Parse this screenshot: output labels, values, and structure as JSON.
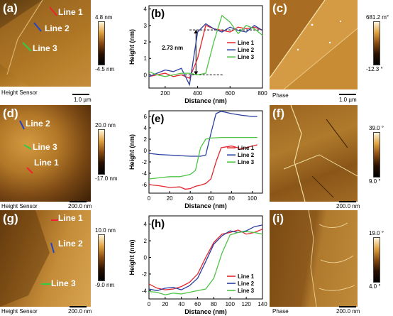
{
  "panels": {
    "a": {
      "letter": "(a)",
      "lines": [
        "Line 1",
        "Line 2",
        "Line 3"
      ],
      "sensor": "Height Sensor",
      "scale": "1.0 µm",
      "cb_top": "4.8 nm",
      "cb_bottom": "-4.5 nm"
    },
    "c": {
      "letter": "(c)",
      "sensor": "Phase",
      "scale": "1.0 µm",
      "cb_top": "681.2 m°",
      "cb_bottom": "-12.3 °"
    },
    "d": {
      "letter": "(d)",
      "lines": [
        "Line 2",
        "Line 3",
        "Line 1"
      ],
      "sensor": "Height Sensor",
      "scale": "200.0 nm",
      "cb_top": "20.0 nm",
      "cb_bottom": "-17.0 nm"
    },
    "f": {
      "letter": "(f)",
      "sensor": "Phase",
      "scale": "200.0 nm",
      "cb_top": "39.0 °",
      "cb_bottom": "9.0 °"
    },
    "g": {
      "letter": "(g)",
      "lines": [
        "Line 1",
        "Line 2",
        "Line 3"
      ],
      "sensor": "Height Sensor",
      "scale": "200.0 nm",
      "cb_top": "10.0 nm",
      "cb_bottom": "-9.0 nm"
    },
    "i": {
      "letter": "(i)",
      "sensor": "Phase",
      "scale": "200.0 nm",
      "cb_top": "19.0 °",
      "cb_bottom": "4.0 °"
    }
  },
  "chart_data": [
    {
      "panel": "(b)",
      "type": "line",
      "xlabel": "Distance (nm)",
      "ylabel": "Height (nm)",
      "xlim": [
        100,
        800
      ],
      "ylim": [
        -0.8,
        4.2
      ],
      "xticks": [
        200,
        400,
        600,
        800
      ],
      "yticks": [
        0,
        1,
        2,
        3,
        4
      ],
      "annotation": "2.73 nm",
      "legend": "center-right",
      "series": [
        {
          "name": "Line 1",
          "color": "#e3262e",
          "x": [
            100,
            150,
            200,
            250,
            300,
            350,
            400,
            450,
            500,
            550,
            600,
            650,
            700,
            750,
            800
          ],
          "y": [
            -0.1,
            0.0,
            0.1,
            -0.1,
            0.0,
            -0.2,
            1.0,
            3.0,
            2.8,
            2.7,
            2.6,
            2.9,
            2.8,
            2.9,
            2.7
          ]
        },
        {
          "name": "Line 2",
          "color": "#2b3fa0",
          "x": [
            100,
            150,
            200,
            250,
            300,
            350,
            400,
            450,
            500,
            550,
            600,
            650,
            700,
            750,
            800
          ],
          "y": [
            -0.1,
            0.1,
            0.3,
            0.2,
            0.4,
            -0.6,
            2.6,
            3.1,
            2.8,
            2.6,
            2.9,
            2.7,
            2.6,
            3.0,
            2.7
          ]
        },
        {
          "name": "Line 3",
          "color": "#4fc447",
          "x": [
            100,
            150,
            200,
            250,
            300,
            350,
            400,
            450,
            500,
            550,
            600,
            650,
            700,
            750,
            800
          ],
          "y": [
            0.2,
            0.0,
            -0.1,
            0.0,
            0.1,
            0.1,
            0.0,
            0.1,
            2.0,
            3.6,
            3.2,
            2.5,
            3.0,
            2.8,
            2.4
          ]
        }
      ]
    },
    {
      "panel": "(e)",
      "type": "line",
      "xlabel": "Distance (nm)",
      "ylabel": "Height (nm)",
      "xlim": [
        0,
        110
      ],
      "ylim": [
        -7.5,
        7
      ],
      "xticks": [
        0,
        20,
        40,
        60,
        80,
        100
      ],
      "yticks": [
        -6,
        -4,
        -2,
        0,
        2,
        4,
        6
      ],
      "legend": "center-right",
      "series": [
        {
          "name": "Line 1",
          "color": "#e3262e",
          "x": [
            0,
            10,
            20,
            30,
            35,
            40,
            45,
            50,
            55,
            60,
            65,
            70,
            80,
            90,
            100,
            105
          ],
          "y": [
            -6,
            -6.2,
            -6.5,
            -6.4,
            -6.8,
            -6.7,
            -6.3,
            -6.1,
            -5.8,
            -5.0,
            -2.0,
            0.5,
            0.8,
            0.3,
            0.8,
            1.0
          ]
        },
        {
          "name": "Line 2",
          "color": "#2b3fa0",
          "x": [
            0,
            10,
            20,
            30,
            40,
            50,
            55,
            60,
            65,
            70,
            80,
            90,
            100,
            105
          ],
          "y": [
            -0.5,
            -0.7,
            -0.8,
            -0.9,
            -1.0,
            -1.0,
            -0.8,
            3.0,
            6.5,
            6.9,
            6.5,
            6.2,
            6.0,
            6.0
          ]
        },
        {
          "name": "Line 3",
          "color": "#4fc447",
          "x": [
            0,
            10,
            20,
            30,
            40,
            45,
            50,
            55,
            60,
            70,
            80,
            90,
            100,
            105
          ],
          "y": [
            -5.0,
            -4.8,
            -4.6,
            -4.6,
            -4.2,
            -3.5,
            0.5,
            2.0,
            2.2,
            2.3,
            2.3,
            2.3,
            2.3,
            2.3
          ]
        }
      ]
    },
    {
      "panel": "(h)",
      "type": "line",
      "xlabel": "Distance (nm)",
      "ylabel": "Height (nm)",
      "xlim": [
        0,
        140
      ],
      "ylim": [
        -5,
        5
      ],
      "xticks": [
        0,
        20,
        40,
        60,
        80,
        100,
        120,
        140
      ],
      "yticks": [
        -4,
        -2,
        0,
        2,
        4
      ],
      "legend": "lower-right",
      "series": [
        {
          "name": "Line 1",
          "color": "#e3262e",
          "x": [
            0,
            10,
            20,
            30,
            40,
            50,
            60,
            70,
            80,
            90,
            100,
            110,
            120,
            130,
            140
          ],
          "y": [
            -3.2,
            -3.7,
            -3.9,
            -3.8,
            -3.5,
            -3.0,
            -2.0,
            0.0,
            1.8,
            2.8,
            3.0,
            3.3,
            2.8,
            3.0,
            3.4
          ]
        },
        {
          "name": "Line 2",
          "color": "#2b3fa0",
          "x": [
            0,
            10,
            20,
            30,
            40,
            50,
            60,
            70,
            80,
            90,
            100,
            110,
            120,
            130,
            140
          ],
          "y": [
            -3.8,
            -4.0,
            -3.7,
            -3.6,
            -3.9,
            -3.4,
            -2.5,
            -0.5,
            1.6,
            2.6,
            3.2,
            3.0,
            3.2,
            3.7,
            3.9
          ]
        },
        {
          "name": "Line 3",
          "color": "#4fc447",
          "x": [
            0,
            10,
            20,
            30,
            40,
            50,
            60,
            70,
            80,
            90,
            100,
            110,
            120,
            130,
            140
          ],
          "y": [
            -4.1,
            -4.2,
            -4.5,
            -4.3,
            -4.4,
            -4.2,
            -4.0,
            -3.8,
            -2.5,
            0.5,
            2.7,
            3.0,
            3.1,
            3.0,
            2.8
          ]
        }
      ]
    }
  ]
}
